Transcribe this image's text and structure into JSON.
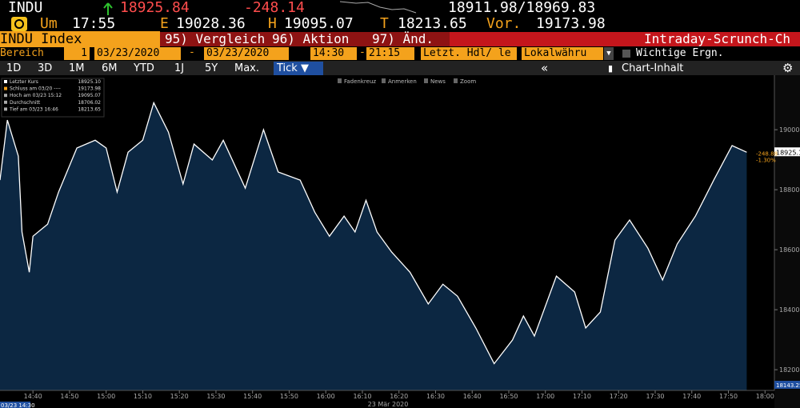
{
  "header": {
    "ticker": "INDU",
    "price": "18925.84",
    "change": "-248.14",
    "bid_ask": "18911.98/18969.83",
    "time_label": "Um",
    "time": "17:55",
    "open_label": "E",
    "open": "19028.36",
    "high_label": "H",
    "high": "19095.07",
    "low_label": "T",
    "low": "18213.65",
    "prev_label": "Vor.",
    "prev": "19173.98"
  },
  "menu": {
    "security": "INDU Index",
    "items": [
      "95) Vergleich",
      "96) Aktion",
      "97) Änd."
    ],
    "title": "Intraday-Scrunch-Ch"
  },
  "settings": {
    "range_label": "Bereich",
    "period": "1",
    "start_date": "03/23/2020",
    "end_date": "03/23/2020",
    "start_time": "14:30",
    "end_time": "21:15",
    "field": "Letzt. Hdl/ le",
    "currency": "Lokalwähru",
    "events": "Wichtige Ergn."
  },
  "toolbar": {
    "ranges": [
      "1D",
      "3D",
      "1M",
      "6M",
      "YTD",
      "1J",
      "5Y",
      "Max."
    ],
    "active": "Tick ▼",
    "content": "Chart-Inhalt"
  },
  "chart_tools": [
    "Fadenkreuz",
    "Anmerken",
    "News",
    "Zoom"
  ],
  "legend": [
    {
      "label": "Letzter Kurs",
      "value": "18925.10"
    },
    {
      "label": "Schluss am 03/20 ----",
      "value": "19173.98"
    },
    {
      "label": "Hoch am 03/23 15:12",
      "value": "19095.07"
    },
    {
      "label": "Durchschnitt",
      "value": "18706.02"
    },
    {
      "label": "Tief am 03/23 16:46",
      "value": "18213.65"
    }
  ],
  "chart_data": {
    "type": "line",
    "x_title": "23 Mär 2020",
    "start_label": "03/23 14:30",
    "bottom_label": "18143.25",
    "last_label": "18925.10",
    "change_label": "-248.88",
    "change_pct_label": "-1.30%",
    "x": [
      "14:31",
      "14:33",
      "14:36",
      "14:37",
      "14:39",
      "14:40",
      "14:44",
      "14:47",
      "14:52",
      "14:57",
      "15:00",
      "15:03",
      "15:06",
      "15:10",
      "15:13",
      "15:17",
      "15:21",
      "15:24",
      "15:29",
      "15:32",
      "15:38",
      "15:43",
      "15:47",
      "15:53",
      "15:57",
      "16:01",
      "16:05",
      "16:08",
      "16:11",
      "16:14",
      "16:18",
      "16:23",
      "16:28",
      "16:32",
      "16:36",
      "16:41",
      "16:46",
      "16:51",
      "16:54",
      "16:57",
      "17:03",
      "17:08",
      "17:11",
      "17:15",
      "17:19",
      "17:23",
      "17:28",
      "17:32",
      "17:36",
      "17:41",
      "17:46",
      "17:51",
      "17:55"
    ],
    "series": [
      {
        "name": "Letzter Kurs",
        "color": "#ffffff",
        "values": [
          18832,
          19032,
          18912,
          18659,
          18525,
          18645,
          18685,
          18792,
          18939,
          18965,
          18939,
          18792,
          18925,
          18965,
          19090,
          18992,
          18819,
          18952,
          18899,
          18965,
          18805,
          19000,
          18859,
          18832,
          18725,
          18645,
          18712,
          18659,
          18765,
          18659,
          18592,
          18525,
          18419,
          18485,
          18445,
          18339,
          18220,
          18299,
          18379,
          18312,
          18512,
          18459,
          18339,
          18392,
          18632,
          18699,
          18605,
          18499,
          18619,
          18712,
          18832,
          18947,
          18925
        ]
      }
    ],
    "xlim": [
      "14:31",
      "18:03"
    ],
    "xticks": [
      "14:40",
      "14:50",
      "15:00",
      "15:10",
      "15:20",
      "15:30",
      "15:40",
      "15:50",
      "16:00",
      "16:10",
      "16:20",
      "16:30",
      "16:40",
      "16:50",
      "17:00",
      "17:10",
      "17:20",
      "17:30",
      "17:40",
      "17:50",
      "18:00"
    ],
    "ylim": [
      18131,
      19179
    ],
    "yticks": [
      18200,
      18400,
      18600,
      18800,
      19000
    ],
    "area_color": "#0c2742"
  }
}
